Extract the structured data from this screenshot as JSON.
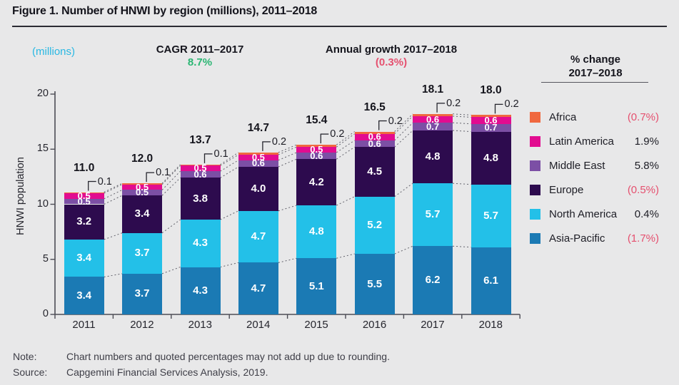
{
  "figure": {
    "title": "Figure 1. Number of HNWI by region (millions), 2011–2018"
  },
  "annotations": {
    "units_label": "(millions)",
    "cagr": {
      "label": "CAGR 2011–2017",
      "value": "8.7%"
    },
    "annual_growth": {
      "label": "Annual growth 2017–2018",
      "value": "(0.3%)"
    }
  },
  "legend": {
    "header_line1": "% change",
    "header_line2": "2017–2018",
    "items": [
      {
        "label": "Africa",
        "value": "(0.7%)",
        "negative": true,
        "color": "#f0683f"
      },
      {
        "label": "Latin America",
        "value": "1.9%",
        "negative": false,
        "color": "#e20c90"
      },
      {
        "label": "Middle East",
        "value": "5.8%",
        "negative": false,
        "color": "#7c4fa5"
      },
      {
        "label": "Europe",
        "value": "(0.5%)",
        "negative": true,
        "color": "#2d0b4e"
      },
      {
        "label": "North America",
        "value": "0.4%",
        "negative": false,
        "color": "#23c0e8"
      },
      {
        "label": "Asia-Pacific",
        "value": "(1.7%)",
        "negative": true,
        "color": "#1b7ab4"
      }
    ]
  },
  "chart_data": {
    "type": "bar",
    "stacked": true,
    "title": "Number of HNWI by region (millions), 2011–2018",
    "xlabel": "",
    "ylabel": "HNWI population",
    "ylim": [
      0,
      20
    ],
    "yticks": [
      0,
      5,
      10,
      15,
      20
    ],
    "grid": false,
    "legend_position": "right",
    "categories": [
      "2011",
      "2012",
      "2013",
      "2014",
      "2015",
      "2016",
      "2017",
      "2018"
    ],
    "series": [
      {
        "name": "Asia-Pacific",
        "color": "#1b7ab4",
        "values": [
          3.4,
          3.7,
          4.3,
          4.7,
          5.1,
          5.5,
          6.2,
          6.1
        ]
      },
      {
        "name": "North America",
        "color": "#23c0e8",
        "values": [
          3.4,
          3.7,
          4.3,
          4.7,
          4.8,
          5.2,
          5.7,
          5.7
        ]
      },
      {
        "name": "Europe",
        "color": "#2d0b4e",
        "values": [
          3.2,
          3.4,
          3.8,
          4.0,
          4.2,
          4.5,
          4.8,
          4.8
        ]
      },
      {
        "name": "Middle East",
        "color": "#7c4fa5",
        "values": [
          0.5,
          0.5,
          0.6,
          0.6,
          0.6,
          0.6,
          0.7,
          0.7
        ]
      },
      {
        "name": "Latin America",
        "color": "#e20c90",
        "values": [
          0.5,
          0.5,
          0.5,
          0.5,
          0.5,
          0.6,
          0.6,
          0.6
        ]
      },
      {
        "name": "Africa",
        "color": "#f0683f",
        "values": [
          0.1,
          0.1,
          0.1,
          0.2,
          0.2,
          0.2,
          0.2,
          0.2
        ]
      }
    ],
    "totals": [
      "11.0",
      "12.0",
      "13.7",
      "14.7",
      "15.4",
      "16.5",
      "18.1",
      "18.0"
    ],
    "callout_series": "Africa"
  },
  "footer": {
    "note_label": "Note:",
    "note_text": "Chart numbers and quoted percentages may not add up due to rounding.",
    "source_label": "Source:",
    "source_text": "Capgemini Financial Services Analysis, 2019."
  },
  "colors": {
    "background": "#e8e8e9",
    "accent_cyan": "#29b8e3",
    "positive_green": "#2bb673",
    "negative_pink": "#e5506f",
    "axis": "#4c4c55",
    "text_dark": "#14141c"
  }
}
